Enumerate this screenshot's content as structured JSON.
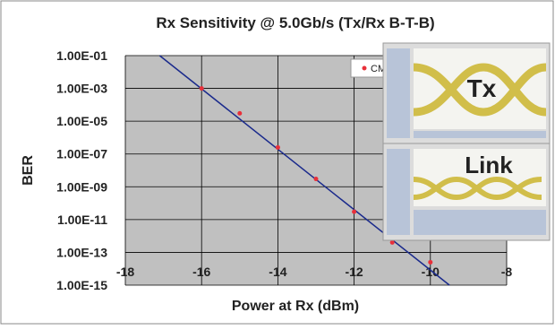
{
  "chart_data": {
    "type": "scatter",
    "title": "Rx Sensitivity @ 5.0Gb/s (Tx/Rx B-T-B)",
    "x_label": "Power at Rx (dBm)",
    "y_label": "BER",
    "series": [
      {
        "name": "CM",
        "color": "#e8303a",
        "x": [
          -16,
          -15,
          -14,
          -13,
          -12,
          -11,
          -10
        ],
        "values": [
          0.001,
          3e-05,
          2.5e-07,
          3e-09,
          3e-11,
          4e-13,
          2.5e-14
        ]
      }
    ],
    "fit_line": {
      "color": "#1a2a8c",
      "x": [
        -17.1,
        -9.5
      ],
      "values": [
        0.1,
        1e-15
      ]
    },
    "xlim": [
      -18,
      -8
    ],
    "xticks": [
      -18,
      -16,
      -14,
      -12,
      -10,
      -8
    ],
    "ylim": [
      1e-15,
      0.1
    ],
    "y_scale": "log",
    "yticks": [
      {
        "value": 0.1,
        "label": "1.00E-01"
      },
      {
        "value": 0.001,
        "label": "1.00E-03"
      },
      {
        "value": 1e-05,
        "label": "1.00E-05"
      },
      {
        "value": 1e-07,
        "label": "1.00E-07"
      },
      {
        "value": 1e-09,
        "label": "1.00E-09"
      },
      {
        "value": 1e-11,
        "label": "1.00E-11"
      },
      {
        "value": 1e-13,
        "label": "1.00E-13"
      },
      {
        "value": 1e-15,
        "label": "1.00E-15"
      }
    ],
    "grid": true,
    "insets": [
      "Tx",
      "Link"
    ]
  }
}
